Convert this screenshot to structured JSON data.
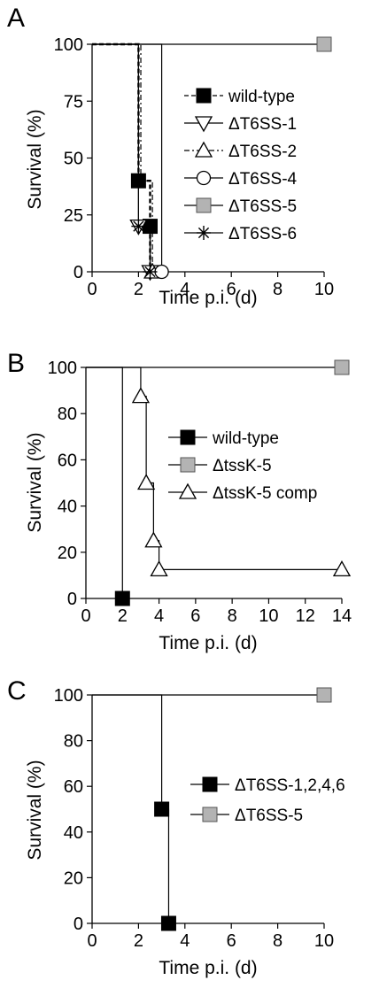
{
  "chart_data": [
    {
      "type": "line",
      "panel": "A",
      "xlabel": "Time p.i. (d)",
      "ylabel": "Survival (%)",
      "xlim": [
        0,
        10
      ],
      "ylim": [
        0,
        100
      ],
      "xticks": [
        0,
        2,
        4,
        6,
        8,
        10
      ],
      "yticks": [
        0,
        25,
        50,
        75,
        100
      ],
      "legend_position": "right",
      "series": [
        {
          "name": "wild-type",
          "marker": "square-black",
          "dash": "dash",
          "x": [
            0,
            2,
            2,
            2.5,
            2.5,
            2.5
          ],
          "y": [
            100,
            100,
            40,
            40,
            20,
            0
          ],
          "marks": [
            [
              2,
              40
            ],
            [
              2.5,
              20
            ]
          ]
        },
        {
          "name": "ΔT6SS-1",
          "marker": "triangle-down-open",
          "dash": "solid",
          "x": [
            0,
            2,
            2,
            2.5,
            2.5,
            2.5
          ],
          "y": [
            100,
            100,
            20,
            20,
            0,
            0
          ],
          "marks": [
            [
              2,
              20
            ],
            [
              2.5,
              0
            ]
          ]
        },
        {
          "name": "ΔT6SS-2",
          "marker": "triangle-up-open",
          "dash": "dashdot",
          "x": [
            0,
            2.1,
            2.1,
            2.6,
            2.6
          ],
          "y": [
            100,
            100,
            40,
            40,
            0
          ],
          "marks": [
            [
              2.6,
              0
            ]
          ]
        },
        {
          "name": "ΔT6SS-4",
          "marker": "circle-open",
          "dash": "solid",
          "x": [
            0,
            3,
            3
          ],
          "y": [
            100,
            100,
            0
          ],
          "marks": [
            [
              3,
              0
            ]
          ]
        },
        {
          "name": "ΔT6SS-5",
          "marker": "square-gray",
          "dash": "solid",
          "x": [
            0,
            10
          ],
          "y": [
            100,
            100
          ],
          "marks": [
            [
              10,
              100
            ]
          ]
        },
        {
          "name": "ΔT6SS-6",
          "marker": "asterisk",
          "dash": "solid",
          "x": [
            0,
            2,
            2,
            2.5,
            2.5
          ],
          "y": [
            100,
            100,
            20,
            20,
            0
          ],
          "marks": [
            [
              2,
              20
            ],
            [
              2.5,
              0
            ]
          ]
        }
      ]
    },
    {
      "type": "line",
      "panel": "B",
      "xlabel": "Time p.i. (d)",
      "ylabel": "Survival (%)",
      "xlim": [
        0,
        14
      ],
      "ylim": [
        0,
        100
      ],
      "xticks": [
        0,
        2,
        4,
        6,
        8,
        10,
        12,
        14
      ],
      "yticks": [
        0,
        20,
        40,
        60,
        80,
        100
      ],
      "legend_position": "right",
      "series": [
        {
          "name": "wild-type",
          "marker": "square-black",
          "dash": "solid",
          "x": [
            0,
            2,
            2
          ],
          "y": [
            100,
            100,
            0
          ],
          "marks": [
            [
              2,
              0
            ]
          ]
        },
        {
          "name": "ΔtssK-5",
          "marker": "square-gray",
          "dash": "solid",
          "x": [
            0,
            14
          ],
          "y": [
            100,
            100
          ],
          "marks": [
            [
              14,
              100
            ]
          ]
        },
        {
          "name": "ΔtssK-5 comp",
          "marker": "triangle-up-open",
          "dash": "solid",
          "x": [
            0,
            3,
            3,
            3.3,
            3.3,
            3.7,
            3.7,
            4,
            4,
            14
          ],
          "y": [
            100,
            100,
            87.5,
            87.5,
            50,
            50,
            25,
            25,
            12.5,
            12.5
          ],
          "marks": [
            [
              3,
              87.5
            ],
            [
              3.3,
              50
            ],
            [
              3.7,
              25
            ],
            [
              4,
              12.5
            ],
            [
              14,
              12.5
            ]
          ]
        }
      ]
    },
    {
      "type": "line",
      "panel": "C",
      "xlabel": "Time p.i. (d)",
      "ylabel": "Survival (%)",
      "xlim": [
        0,
        10
      ],
      "ylim": [
        0,
        100
      ],
      "xticks": [
        0,
        2,
        4,
        6,
        8,
        10
      ],
      "yticks": [
        0,
        20,
        40,
        60,
        80,
        100
      ],
      "legend_position": "right",
      "series": [
        {
          "name": "ΔT6SS-1,2,4,6",
          "marker": "square-black",
          "dash": "solid",
          "x": [
            0,
            3,
            3,
            3.3,
            3.3
          ],
          "y": [
            100,
            100,
            50,
            50,
            0
          ],
          "marks": [
            [
              3,
              50
            ],
            [
              3.3,
              0
            ]
          ]
        },
        {
          "name": "ΔT6SS-5",
          "marker": "square-gray",
          "dash": "solid",
          "x": [
            0,
            10
          ],
          "y": [
            100,
            100
          ],
          "marks": [
            [
              10,
              100
            ]
          ]
        }
      ]
    }
  ],
  "colors": {
    "black": "#000000",
    "gray": "#b3b3b3",
    "open": "#ffffff"
  }
}
